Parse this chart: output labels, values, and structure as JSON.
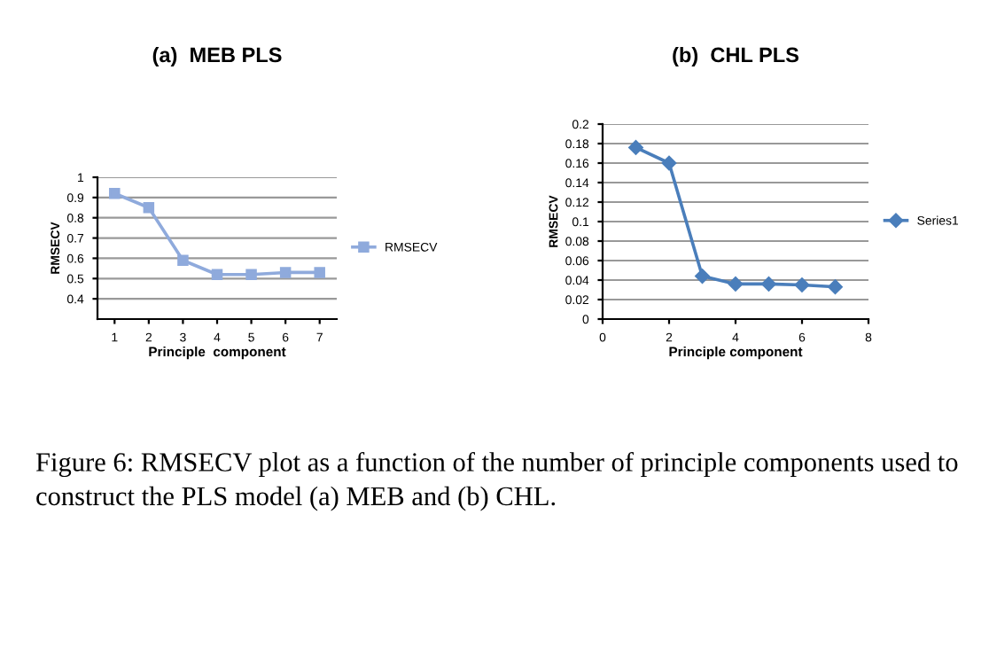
{
  "chart_data": [
    {
      "type": "line",
      "title": "(a)  MEB PLS",
      "xlabel": "Principle  component",
      "ylabel": "RMSECV",
      "categories": [
        "1",
        "2",
        "3",
        "4",
        "5",
        "6",
        "7"
      ],
      "series": [
        {
          "name": "RMSECV",
          "color": "#8faadc",
          "values": [
            0.92,
            0.85,
            0.59,
            0.52,
            0.52,
            0.53,
            0.53
          ]
        }
      ],
      "ylim": [
        0.3,
        1
      ],
      "yticks": [
        0.4,
        0.5,
        0.6,
        0.7,
        0.8,
        0.9,
        1
      ],
      "grid": "y",
      "legend": "right",
      "marker": "square",
      "annotations": [
        "Figure 6: RMSECV plot as a function of the number of principle components used to construct the PLS model (a) MEB and (b) CHL."
      ]
    },
    {
      "type": "line",
      "title": "(b)  CHL PLS",
      "xlabel": "Principle component",
      "ylabel": "RMSECV",
      "x": [
        1,
        2,
        3,
        4,
        5,
        6,
        7
      ],
      "series": [
        {
          "name": "Series1",
          "color": "#4a7ebb",
          "values": [
            0.176,
            0.16,
            0.044,
            0.036,
            0.036,
            0.035,
            0.033
          ]
        }
      ],
      "xlim": [
        0,
        8
      ],
      "xticks": [
        0,
        2,
        4,
        6,
        8
      ],
      "ylim": [
        0,
        0.2
      ],
      "yticks": [
        0,
        0.02,
        0.04,
        0.06,
        0.08,
        0.1,
        0.12,
        0.14,
        0.16,
        0.18,
        0.2
      ],
      "grid": "y",
      "legend": "right",
      "marker": "diamond"
    }
  ]
}
